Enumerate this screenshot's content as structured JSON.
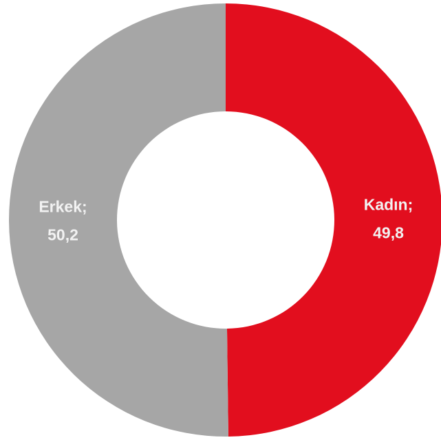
{
  "chart_data": {
    "type": "donut",
    "categories": [
      "Kadın;",
      "Erkek;"
    ],
    "values": [
      49.8,
      50.2
    ],
    "value_labels": [
      "49,8",
      "50,2"
    ],
    "colors": [
      "#e20e1e",
      "#a6a6a6"
    ]
  }
}
